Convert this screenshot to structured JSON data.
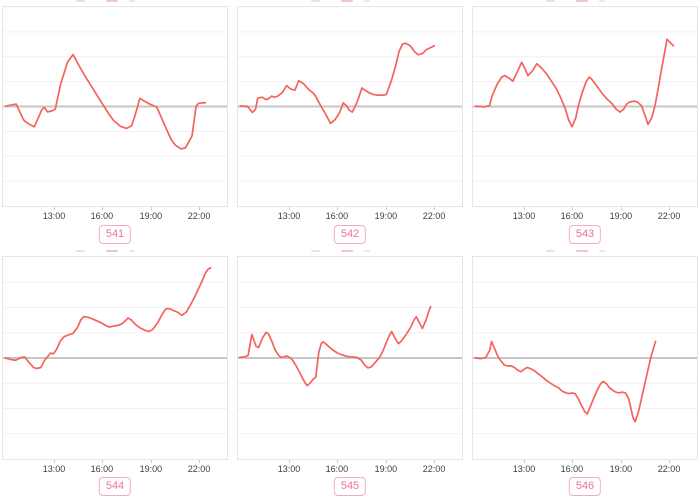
{
  "colors": {
    "line": "#f4635e",
    "baseline": "#c6c6c6",
    "gridline": "#f1f1f1",
    "plot_border": "#e5e5e5",
    "tick_label": "#3e3e3e",
    "badge_text": "#ee6f9b",
    "badge_border": "#f6abc4"
  },
  "grid": {
    "hline_positions_pct": [
      12.5,
      25,
      37.5,
      62.5,
      75,
      87.5
    ],
    "vertical_gridlines": false,
    "legend": "none",
    "y_axis_labels": "none (unlabeled, zero baseline at vertical center)"
  },
  "chart_data": [
    {
      "type": "line",
      "badge": "541",
      "x_ticks": [
        "13:00",
        "16:00",
        "19:00",
        "22:00"
      ],
      "x_tick_positions_pct": [
        23,
        44.2,
        65.9,
        87.2
      ],
      "baseline_pct": 50,
      "points_pct": [
        [
          1.2,
          49.8
        ],
        [
          5.9,
          48.8
        ],
        [
          9.2,
          56.7
        ],
        [
          10.3,
          57.9
        ],
        [
          13,
          59.7
        ],
        [
          14,
          60.2
        ],
        [
          17.4,
          51.4
        ],
        [
          18.5,
          50.6
        ],
        [
          19.9,
          52.7
        ],
        [
          22.1,
          52.1
        ],
        [
          23.3,
          51.4
        ],
        [
          25.8,
          38.5
        ],
        [
          28.8,
          27.7
        ],
        [
          31.3,
          23.9
        ],
        [
          33.9,
          29.4
        ],
        [
          36.9,
          35.2
        ],
        [
          39.8,
          40.4
        ],
        [
          42.8,
          45.9
        ],
        [
          45,
          49.8
        ],
        [
          47.2,
          53.7
        ],
        [
          49.4,
          57.1
        ],
        [
          52.5,
          60
        ],
        [
          55.2,
          61
        ],
        [
          57.4,
          59.7
        ],
        [
          58.8,
          55.1
        ],
        [
          61.1,
          45.9
        ],
        [
          62.8,
          47.1
        ],
        [
          65.5,
          48.8
        ],
        [
          67.7,
          49.8
        ],
        [
          68.7,
          50.4
        ],
        [
          72.1,
          59.2
        ],
        [
          75.1,
          66.7
        ],
        [
          77,
          69.5
        ],
        [
          79.5,
          71.3
        ],
        [
          81.4,
          70.8
        ],
        [
          83.5,
          66.7
        ],
        [
          84.4,
          64.7
        ],
        [
          86.2,
          49.8
        ],
        [
          87.3,
          48.4
        ],
        [
          89.4,
          48.1
        ],
        [
          90.3,
          48.1
        ]
      ]
    },
    {
      "type": "line",
      "badge": "542",
      "x_ticks": [
        "13:00",
        "16:00",
        "19:00",
        "22:00"
      ],
      "x_tick_positions_pct": [
        23,
        44.2,
        65.9,
        87.2
      ],
      "baseline_pct": 50,
      "points_pct": [
        [
          1.1,
          49.7
        ],
        [
          4.3,
          50
        ],
        [
          6.4,
          53
        ],
        [
          7.8,
          51.5
        ],
        [
          8.8,
          45.8
        ],
        [
          10.7,
          45.3
        ],
        [
          12.5,
          46.5
        ],
        [
          13.5,
          46.2
        ],
        [
          15,
          44.8
        ],
        [
          16,
          45.3
        ],
        [
          17.8,
          44.8
        ],
        [
          19.9,
          42.8
        ],
        [
          21.7,
          39.5
        ],
        [
          23.5,
          41.2
        ],
        [
          25.4,
          41.8
        ],
        [
          27.1,
          37
        ],
        [
          29.2,
          38.5
        ],
        [
          31.3,
          41.2
        ],
        [
          33.5,
          43.2
        ],
        [
          34.5,
          44.5
        ],
        [
          37,
          49.8
        ],
        [
          39.2,
          54
        ],
        [
          41.3,
          58.5
        ],
        [
          43.4,
          56.5
        ],
        [
          45.3,
          53.2
        ],
        [
          47,
          48.2
        ],
        [
          48.4,
          49.6
        ],
        [
          49.6,
          51.8
        ],
        [
          51,
          52.8
        ],
        [
          52.7,
          49
        ],
        [
          53.8,
          45.8
        ],
        [
          55.3,
          40.7
        ],
        [
          56.7,
          41.8
        ],
        [
          58.7,
          43.2
        ],
        [
          60.5,
          44
        ],
        [
          62.7,
          44.3
        ],
        [
          64.8,
          44.3
        ],
        [
          66.2,
          44
        ],
        [
          68.4,
          37.3
        ],
        [
          70.5,
          29
        ],
        [
          71.9,
          22.3
        ],
        [
          73.4,
          18.7
        ],
        [
          74.8,
          18.2
        ],
        [
          76.9,
          19.5
        ],
        [
          79.1,
          22.8
        ],
        [
          80.5,
          24
        ],
        [
          82.6,
          23.2
        ],
        [
          84,
          21.5
        ],
        [
          86.2,
          20.3
        ],
        [
          87.6,
          19.5
        ]
      ]
    },
    {
      "type": "line",
      "badge": "543",
      "x_ticks": [
        "13:00",
        "16:00",
        "19:00",
        "22:00"
      ],
      "x_tick_positions_pct": [
        23,
        44.2,
        65.9,
        87.2
      ],
      "baseline_pct": 50,
      "points_pct": [
        [
          1.1,
          49.8
        ],
        [
          5,
          50.2
        ],
        [
          7.4,
          49.5
        ],
        [
          8.5,
          44.8
        ],
        [
          10.7,
          39
        ],
        [
          12.8,
          35.2
        ],
        [
          14.2,
          34.5
        ],
        [
          16,
          35.7
        ],
        [
          17.8,
          37.3
        ],
        [
          19.9,
          32.3
        ],
        [
          21.7,
          27.8
        ],
        [
          23.1,
          30.7
        ],
        [
          24.5,
          34.5
        ],
        [
          26.4,
          32.3
        ],
        [
          28.5,
          28.5
        ],
        [
          30.6,
          30.7
        ],
        [
          32.8,
          33.5
        ],
        [
          35.3,
          37.8
        ],
        [
          37.3,
          41.2
        ],
        [
          39.2,
          45.7
        ],
        [
          41.3,
          51.5
        ],
        [
          42.7,
          56.8
        ],
        [
          44.2,
          60.2
        ],
        [
          45.9,
          55.7
        ],
        [
          47,
          49.8
        ],
        [
          48.7,
          43.2
        ],
        [
          50.6,
          37.3
        ],
        [
          52,
          35.2
        ],
        [
          53.4,
          36.8
        ],
        [
          55.6,
          40.2
        ],
        [
          57.7,
          43.5
        ],
        [
          59.8,
          46.2
        ],
        [
          62,
          48.5
        ],
        [
          63.8,
          51.2
        ],
        [
          65.5,
          52.8
        ],
        [
          67.2,
          51.5
        ],
        [
          68.4,
          49
        ],
        [
          69.8,
          47.8
        ],
        [
          71.9,
          47.3
        ],
        [
          73.4,
          47.8
        ],
        [
          75.2,
          49.5
        ],
        [
          76.9,
          54.8
        ],
        [
          78.1,
          59
        ],
        [
          79.8,
          55.7
        ],
        [
          81.2,
          49.8
        ],
        [
          82.6,
          41.5
        ],
        [
          84,
          32.3
        ],
        [
          85.5,
          23.2
        ],
        [
          86.6,
          16.2
        ],
        [
          88,
          17.8
        ],
        [
          89.5,
          19.5
        ]
      ]
    },
    {
      "type": "line",
      "badge": "544",
      "x_ticks": [
        "13:00",
        "16:00",
        "19:00",
        "22:00"
      ],
      "x_tick_positions_pct": [
        23,
        44.2,
        65.9,
        87.2
      ],
      "baseline_pct": 50,
      "points_pct": [
        [
          1.1,
          50
        ],
        [
          3.6,
          50.8
        ],
        [
          5.7,
          51.1
        ],
        [
          7.9,
          49.8
        ],
        [
          9.7,
          49.5
        ],
        [
          11.4,
          51.9
        ],
        [
          13.6,
          54.7
        ],
        [
          15,
          55.2
        ],
        [
          16.9,
          54.7
        ],
        [
          18.6,
          51.1
        ],
        [
          20,
          49.2
        ],
        [
          21.2,
          47.6
        ],
        [
          22.6,
          47.9
        ],
        [
          24,
          45.5
        ],
        [
          25.5,
          41.8
        ],
        [
          27.2,
          39.5
        ],
        [
          29.3,
          38.5
        ],
        [
          31.2,
          37.9
        ],
        [
          33.2,
          35
        ],
        [
          34.8,
          31
        ],
        [
          36.1,
          29.5
        ],
        [
          37.9,
          29.8
        ],
        [
          39.8,
          30.6
        ],
        [
          41.9,
          31.6
        ],
        [
          44.1,
          32.7
        ],
        [
          45.8,
          33.9
        ],
        [
          47.5,
          34.7
        ],
        [
          49.4,
          34.2
        ],
        [
          51.2,
          33.9
        ],
        [
          52.9,
          33.2
        ],
        [
          54.4,
          31.8
        ],
        [
          55.8,
          30.2
        ],
        [
          57.2,
          31.1
        ],
        [
          59.4,
          33.7
        ],
        [
          61.5,
          35.3
        ],
        [
          63.4,
          36.3
        ],
        [
          65.2,
          36.9
        ],
        [
          66.9,
          35.8
        ],
        [
          69,
          32.6
        ],
        [
          71,
          28.5
        ],
        [
          72.7,
          25.6
        ],
        [
          74.4,
          25.6
        ],
        [
          76.3,
          26.6
        ],
        [
          78.1,
          27.4
        ],
        [
          79.8,
          28.9
        ],
        [
          81.8,
          27.3
        ],
        [
          83.7,
          23.7
        ],
        [
          85.6,
          19.7
        ],
        [
          87.3,
          15.6
        ],
        [
          89,
          11.6
        ],
        [
          90.4,
          7.9
        ],
        [
          91.6,
          6
        ],
        [
          92.7,
          5.3
        ]
      ]
    },
    {
      "type": "line",
      "badge": "545",
      "x_ticks": [
        "13:00",
        "16:00",
        "19:00",
        "22:00"
      ],
      "x_tick_positions_pct": [
        23,
        44.2,
        65.9,
        87.2
      ],
      "baseline_pct": 50,
      "points_pct": [
        [
          0.8,
          49.7
        ],
        [
          3,
          49.4
        ],
        [
          4.5,
          48.8
        ],
        [
          6.2,
          38.4
        ],
        [
          8.1,
          44.3
        ],
        [
          9.2,
          44.8
        ],
        [
          11,
          40
        ],
        [
          12.5,
          37.3
        ],
        [
          13.6,
          38
        ],
        [
          15.2,
          42
        ],
        [
          16.5,
          45.8
        ],
        [
          18,
          48.5
        ],
        [
          19.2,
          49.7
        ],
        [
          20.7,
          49.4
        ],
        [
          21.8,
          49
        ],
        [
          22.9,
          49.7
        ],
        [
          24.3,
          51
        ],
        [
          25.8,
          53.6
        ],
        [
          27.3,
          56.7
        ],
        [
          28.8,
          60
        ],
        [
          30.2,
          62.7
        ],
        [
          31,
          63.7
        ],
        [
          32.4,
          62.1
        ],
        [
          33.6,
          60.5
        ],
        [
          34.7,
          59.5
        ],
        [
          36.1,
          46.9
        ],
        [
          37.2,
          42.8
        ],
        [
          38.1,
          42
        ],
        [
          39.8,
          43.6
        ],
        [
          42,
          45.8
        ],
        [
          44.2,
          47.4
        ],
        [
          46.5,
          48.5
        ],
        [
          48.7,
          49.2
        ],
        [
          50.1,
          49.4
        ],
        [
          53,
          49.7
        ],
        [
          55,
          51
        ],
        [
          56.5,
          53.4
        ],
        [
          58,
          54.9
        ],
        [
          59.5,
          54.4
        ],
        [
          61,
          52.5
        ],
        [
          63,
          50
        ],
        [
          64.5,
          47
        ],
        [
          66,
          43
        ],
        [
          67.5,
          38.9
        ],
        [
          68.6,
          36.9
        ],
        [
          70,
          40
        ],
        [
          71.6,
          42.9
        ],
        [
          73,
          41.5
        ],
        [
          75,
          38.4
        ],
        [
          77,
          35
        ],
        [
          78.6,
          31.1
        ],
        [
          79.6,
          29.6
        ],
        [
          81,
          32.6
        ],
        [
          82.3,
          35.4
        ],
        [
          84,
          31
        ],
        [
          85.3,
          26.5
        ],
        [
          86,
          24.6
        ]
      ]
    },
    {
      "type": "line",
      "badge": "546",
      "x_ticks": [
        "13:00",
        "16:00",
        "19:00",
        "22:00"
      ],
      "x_tick_positions_pct": [
        23,
        44.2,
        65.9,
        87.2
      ],
      "baseline_pct": 50,
      "points_pct": [
        [
          1,
          50
        ],
        [
          3.6,
          50.3
        ],
        [
          5.7,
          49.8
        ],
        [
          7.4,
          46.3
        ],
        [
          8.3,
          41.8
        ],
        [
          9.7,
          45.5
        ],
        [
          11.1,
          49.2
        ],
        [
          12.5,
          51.5
        ],
        [
          14,
          53.5
        ],
        [
          15.7,
          54
        ],
        [
          17.1,
          53.9
        ],
        [
          18.5,
          54.7
        ],
        [
          19.9,
          56
        ],
        [
          21.4,
          56.8
        ],
        [
          22.8,
          55.6
        ],
        [
          24.2,
          54.7
        ],
        [
          25.6,
          55.2
        ],
        [
          27.4,
          56.3
        ],
        [
          29.2,
          57.9
        ],
        [
          31.1,
          59.5
        ],
        [
          32.8,
          61.1
        ],
        [
          34.5,
          62.4
        ],
        [
          36.3,
          63.7
        ],
        [
          38.2,
          64.8
        ],
        [
          39.9,
          66.5
        ],
        [
          41.6,
          67.3
        ],
        [
          42.7,
          67.6
        ],
        [
          44.2,
          67.3
        ],
        [
          45.6,
          67.6
        ],
        [
          47,
          70.2
        ],
        [
          48.4,
          73.4
        ],
        [
          49.9,
          76.6
        ],
        [
          51,
          77.7
        ],
        [
          52.4,
          74
        ],
        [
          53.8,
          70.2
        ],
        [
          55.6,
          65.6
        ],
        [
          57,
          62.7
        ],
        [
          58.1,
          61.6
        ],
        [
          59.5,
          62.7
        ],
        [
          61,
          64.8
        ],
        [
          62.4,
          66
        ],
        [
          63.8,
          66.9
        ],
        [
          65.2,
          67.3
        ],
        [
          66.7,
          66.9
        ],
        [
          68.1,
          67.3
        ],
        [
          69.5,
          70.2
        ],
        [
          70.5,
          75
        ],
        [
          71.5,
          79.8
        ],
        [
          72.4,
          81.5
        ],
        [
          73.8,
          76.9
        ],
        [
          75.2,
          70.2
        ],
        [
          76.6,
          63.2
        ],
        [
          78.1,
          56
        ],
        [
          79.5,
          49.2
        ],
        [
          80.5,
          45.5
        ],
        [
          81.5,
          41.8
        ]
      ]
    }
  ]
}
